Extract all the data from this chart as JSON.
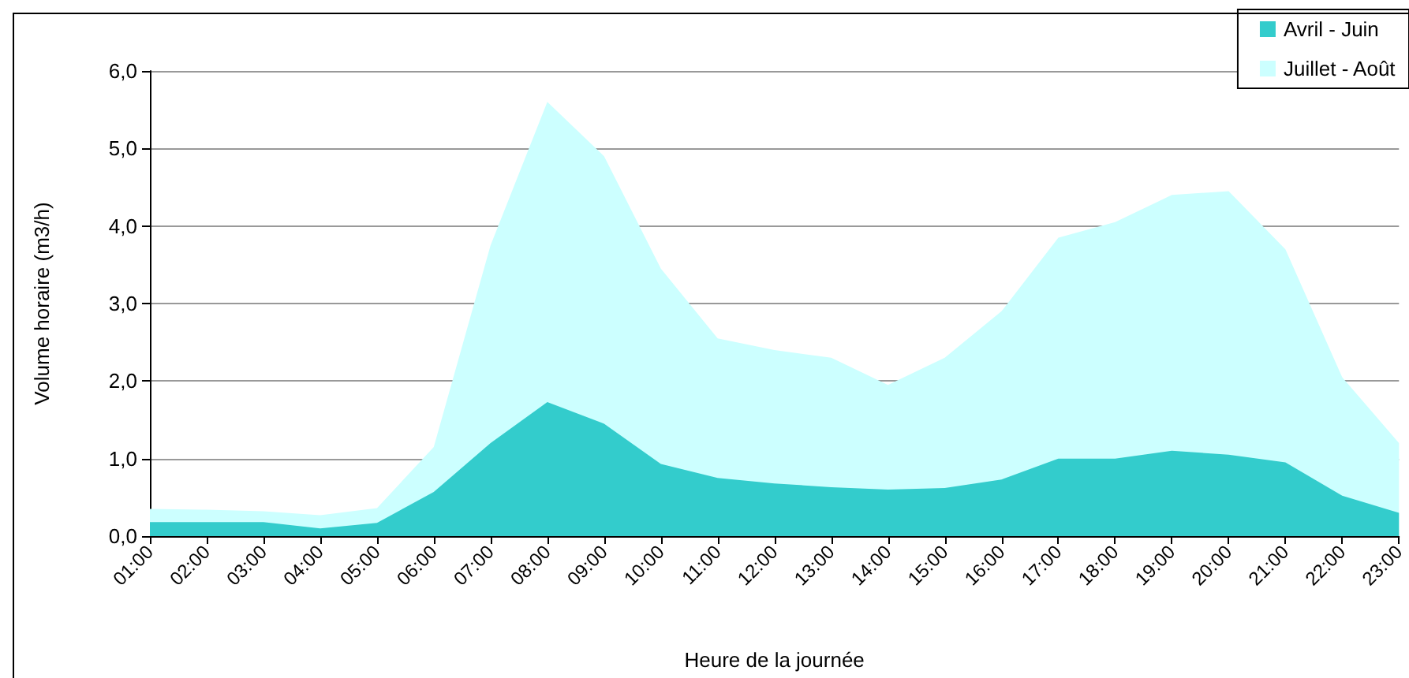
{
  "chart_data": {
    "type": "area",
    "xlabel": "Heure de la journée",
    "ylabel": "Volume horaire (m3/h)",
    "categories": [
      "01:00",
      "02:00",
      "03:00",
      "04:00",
      "05:00",
      "06:00",
      "07:00",
      "08:00",
      "09:00",
      "10:00",
      "11:00",
      "12:00",
      "13:00",
      "14:00",
      "15:00",
      "16:00",
      "17:00",
      "18:00",
      "19:00",
      "20:00",
      "21:00",
      "22:00",
      "23:00"
    ],
    "series": [
      {
        "name": "Juillet - Août",
        "color": "#ccffff",
        "values": [
          0.35,
          0.34,
          0.32,
          0.27,
          0.36,
          1.15,
          3.75,
          5.6,
          4.9,
          3.45,
          2.55,
          2.4,
          2.3,
          1.95,
          2.3,
          2.9,
          3.85,
          4.05,
          4.4,
          4.45,
          3.7,
          2.05,
          1.2
        ]
      },
      {
        "name": "Avril - Juin",
        "color": "#33cccc",
        "values": [
          0.18,
          0.18,
          0.18,
          0.1,
          0.17,
          0.57,
          1.2,
          1.73,
          1.45,
          0.93,
          0.75,
          0.68,
          0.63,
          0.6,
          0.62,
          0.73,
          1.0,
          1.0,
          1.1,
          1.05,
          0.95,
          0.52,
          0.3
        ]
      }
    ],
    "ylim": [
      0,
      6
    ],
    "yticks": [
      {
        "value": 0,
        "label": "0,0"
      },
      {
        "value": 1,
        "label": "1,0"
      },
      {
        "value": 2,
        "label": "2,0"
      },
      {
        "value": 3,
        "label": "3,0"
      },
      {
        "value": 4,
        "label": "4,0"
      },
      {
        "value": 5,
        "label": "5,0"
      },
      {
        "value": 6,
        "label": "6,0"
      }
    ],
    "grid": "y",
    "legend": "top right",
    "marker": "none"
  }
}
